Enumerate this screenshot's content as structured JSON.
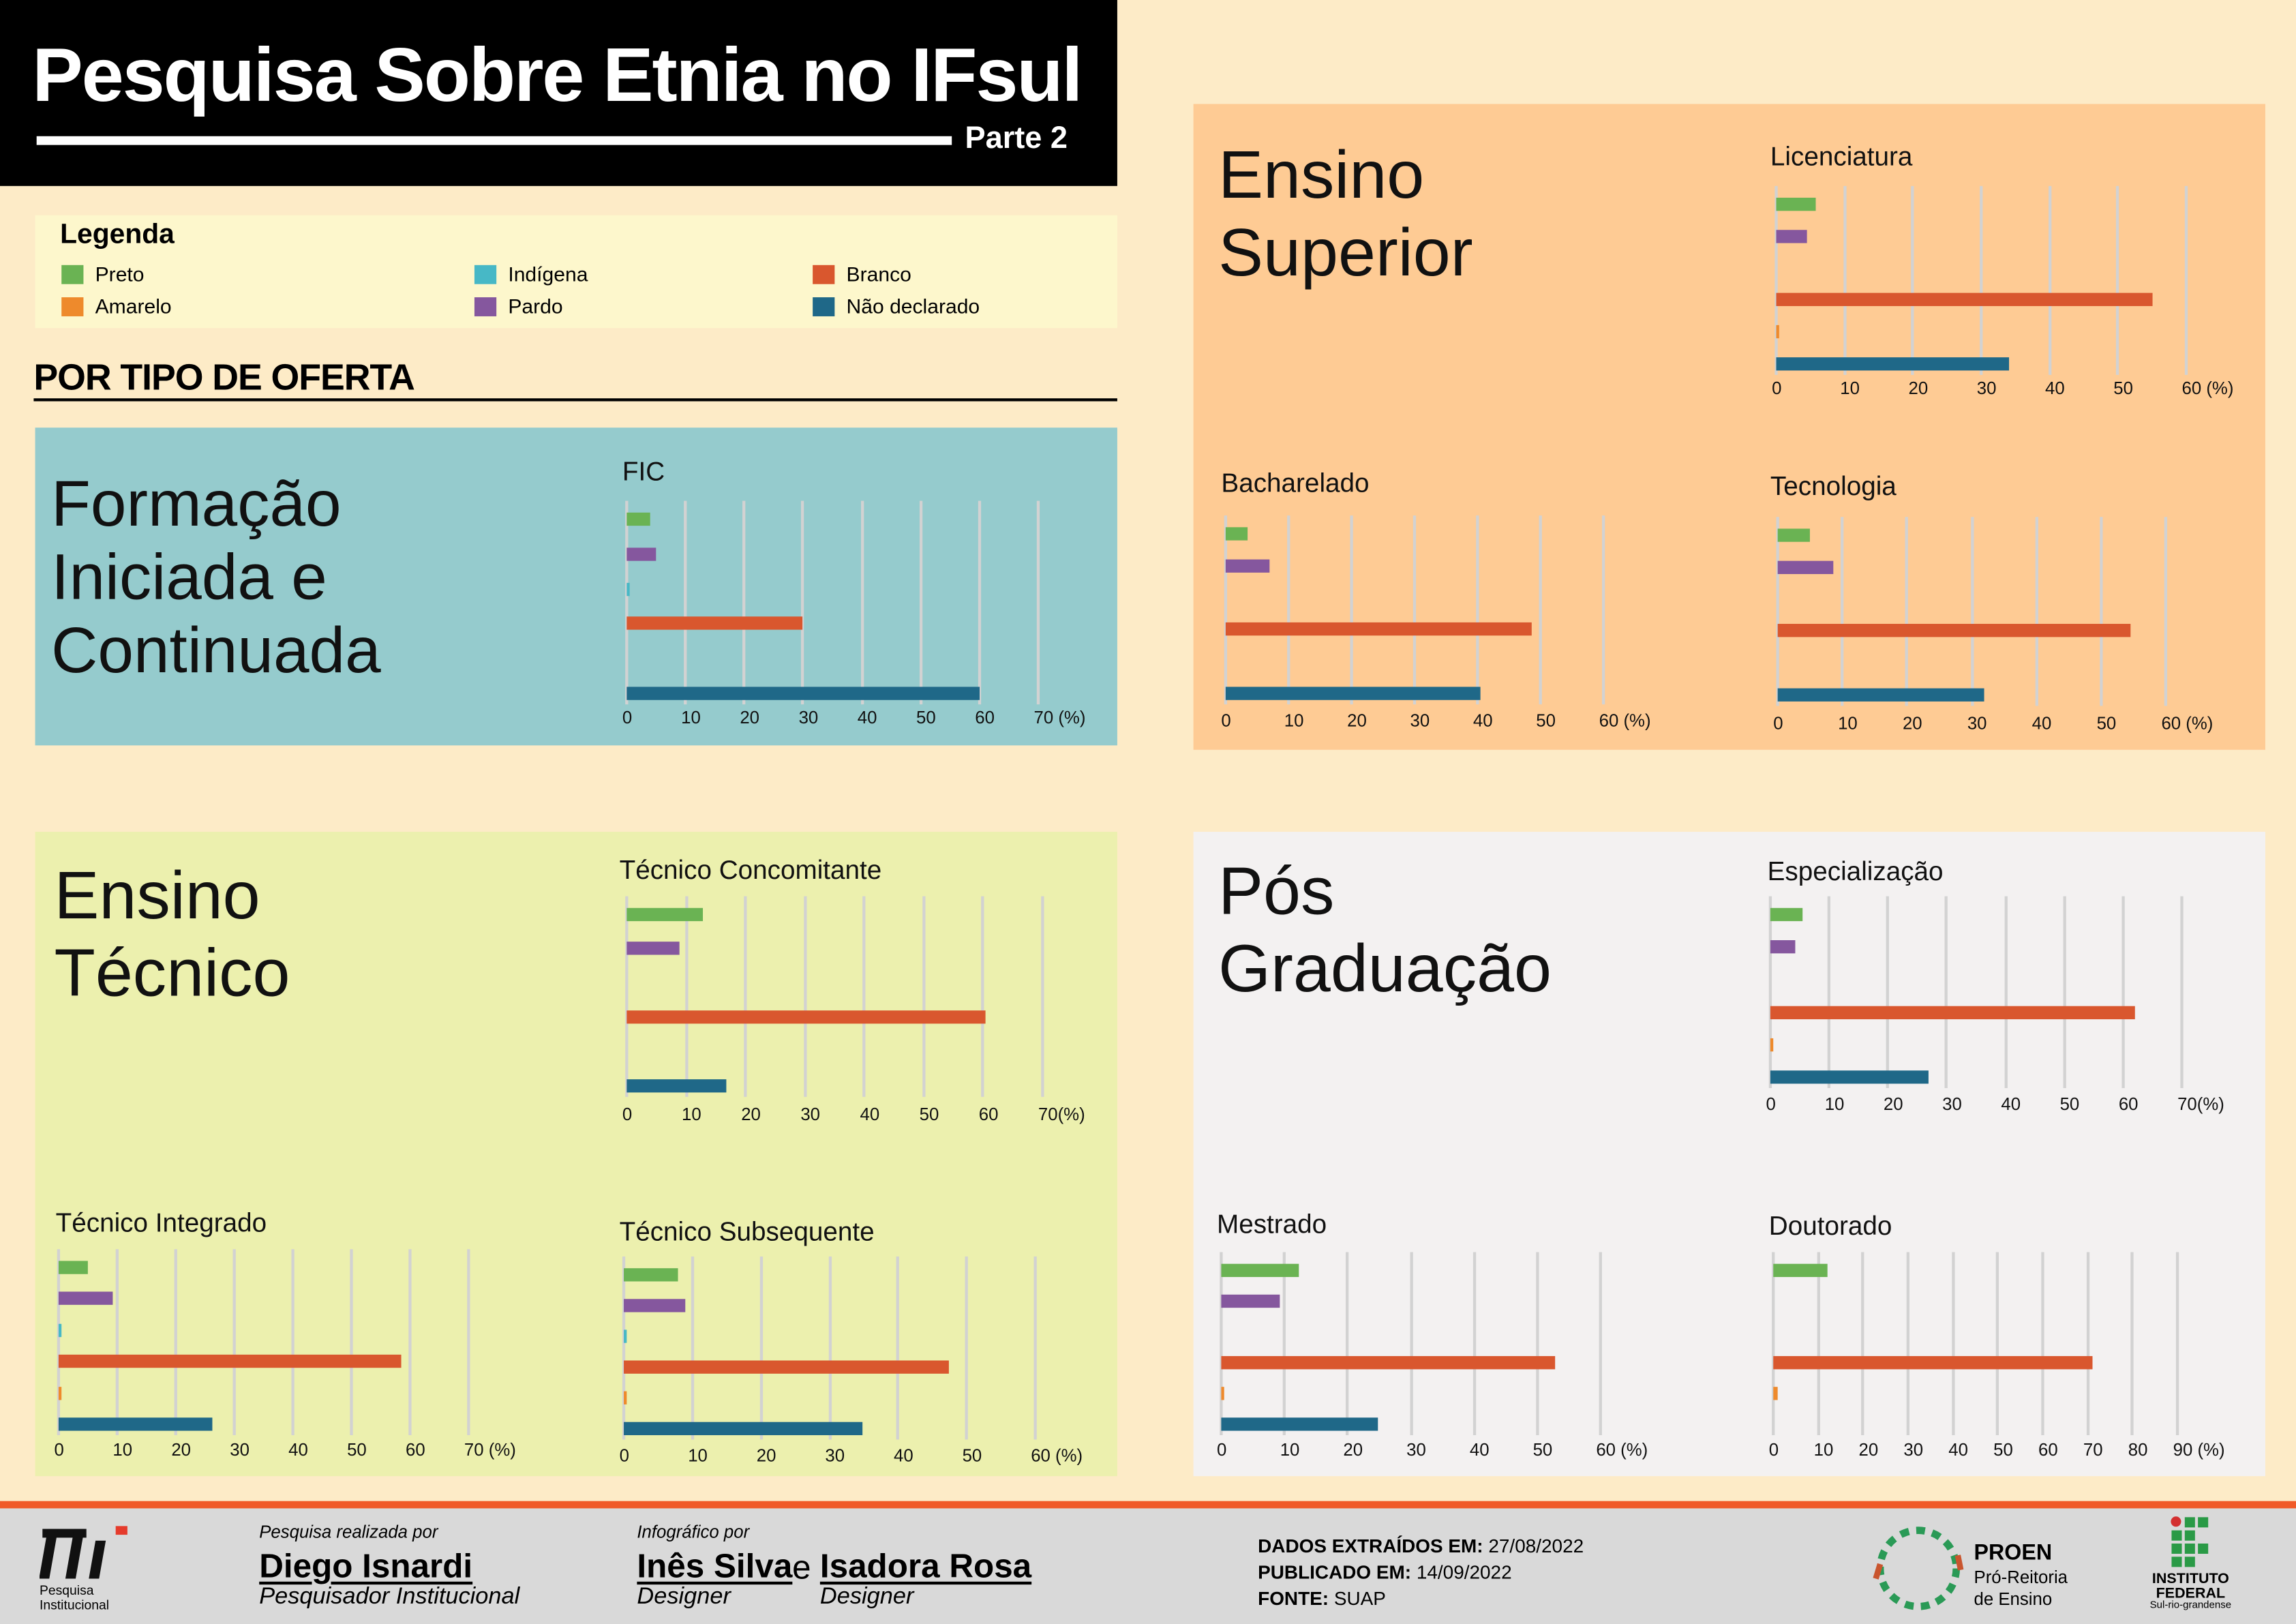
{
  "header": {
    "title": "Pesquisa Sobre Etnia no IFsul",
    "part": "Parte 2"
  },
  "legend": {
    "title": "Legenda",
    "items": [
      {
        "label": "Preto",
        "color": "#6ab353"
      },
      {
        "label": "Amarelo",
        "color": "#ee8a2c"
      },
      {
        "label": "Indígena",
        "color": "#47b8c6"
      },
      {
        "label": "Pardo",
        "color": "#85579e"
      },
      {
        "label": "Branco",
        "color": "#d9572e"
      },
      {
        "label": "Não declarado",
        "color": "#1f6888"
      }
    ]
  },
  "section_title": "POR TIPO DE OFERTA",
  "panels": {
    "fic": "Formação\nIniciada e\nContinuada",
    "superior": "Ensino\nSuperior",
    "tecnico": "Ensino\nTécnico",
    "pos": "Pós\nGraduação"
  },
  "series_colors": {
    "Preto": "#6ab353",
    "Pardo": "#85579e",
    "Indígena": "#47b8c6",
    "Branco": "#d9572e",
    "Amarelo": "#ee8a2c",
    "Não declarado": "#1f6888"
  },
  "chart_data": [
    {
      "type": "bar",
      "orientation": "horizontal",
      "title": "FIC",
      "categories": [
        "Preto",
        "Pardo",
        "Indígena",
        "Branco",
        "Amarelo",
        "Não declarado"
      ],
      "values": [
        4,
        5,
        0.3,
        30,
        0,
        60
      ],
      "xlim": [
        0,
        70
      ],
      "tick_labels": [
        "0",
        "10",
        "20",
        "30",
        "40",
        "50",
        "60",
        "70 (%)"
      ],
      "grid": true
    },
    {
      "type": "bar",
      "orientation": "horizontal",
      "title": "Licenciatura",
      "categories": [
        "Preto",
        "Pardo",
        "Indígena",
        "Branco",
        "Amarelo",
        "Não declarado"
      ],
      "values": [
        5.8,
        4.6,
        0,
        55,
        0.3,
        34
      ],
      "xlim": [
        0,
        60
      ],
      "tick_labels": [
        "0",
        "10",
        "20",
        "30",
        "40",
        "50",
        "60 (%)"
      ],
      "grid": true
    },
    {
      "type": "bar",
      "orientation": "horizontal",
      "title": "Bacharelado",
      "categories": [
        "Preto",
        "Pardo",
        "Indígena",
        "Branco",
        "Amarelo",
        "Não declarado"
      ],
      "values": [
        3.5,
        7,
        0,
        48.5,
        0,
        40.5
      ],
      "xlim": [
        0,
        60
      ],
      "tick_labels": [
        "0",
        "10",
        "20",
        "30",
        "40",
        "50",
        "60 (%)"
      ],
      "grid": true
    },
    {
      "type": "bar",
      "orientation": "horizontal",
      "title": "Tecnologia",
      "categories": [
        "Preto",
        "Pardo",
        "Indígena",
        "Branco",
        "Amarelo",
        "Não declarado"
      ],
      "values": [
        5,
        8.5,
        0,
        54.5,
        0,
        32
      ],
      "xlim": [
        0,
        60
      ],
      "tick_labels": [
        "0",
        "10",
        "20",
        "30",
        "40",
        "50",
        "60 (%)"
      ],
      "grid": true
    },
    {
      "type": "bar",
      "orientation": "horizontal",
      "title": "Técnico Concomitante",
      "categories": [
        "Preto",
        "Pardo",
        "Indígena",
        "Branco",
        "Amarelo",
        "Não declarado"
      ],
      "values": [
        12.7,
        8.8,
        0,
        60.5,
        0,
        16.7
      ],
      "xlim": [
        0,
        70
      ],
      "tick_labels": [
        "0",
        "10",
        "20",
        "30",
        "40",
        "50",
        "60",
        "70(%)"
      ],
      "grid": true
    },
    {
      "type": "bar",
      "orientation": "horizontal",
      "title": "Técnico Integrado",
      "categories": [
        "Preto",
        "Pardo",
        "Indígena",
        "Branco",
        "Amarelo",
        "Não declarado"
      ],
      "values": [
        5,
        9.3,
        0.1,
        58.5,
        0.2,
        26.3
      ],
      "xlim": [
        0,
        70
      ],
      "tick_labels": [
        "0",
        "10",
        "20",
        "30",
        "40",
        "50",
        "60",
        "70 (%)"
      ],
      "grid": true
    },
    {
      "type": "bar",
      "orientation": "horizontal",
      "title": "Técnico Subsequente",
      "categories": [
        "Preto",
        "Pardo",
        "Indígena",
        "Branco",
        "Amarelo",
        "Não declarado"
      ],
      "values": [
        8,
        9,
        0.1,
        47.5,
        0.1,
        34.8
      ],
      "xlim": [
        0,
        60
      ],
      "tick_labels": [
        "0",
        "10",
        "20",
        "30",
        "40",
        "50",
        "60 (%)"
      ],
      "grid": true
    },
    {
      "type": "bar",
      "orientation": "horizontal",
      "title": "Especialização",
      "categories": [
        "Preto",
        "Pardo",
        "Indígena",
        "Branco",
        "Amarelo",
        "Não declarado"
      ],
      "values": [
        5.5,
        4.2,
        0,
        62,
        0.3,
        27
      ],
      "xlim": [
        0,
        70
      ],
      "tick_labels": [
        "0",
        "10",
        "20",
        "30",
        "40",
        "50",
        "60",
        "70(%)"
      ],
      "grid": true
    },
    {
      "type": "bar",
      "orientation": "horizontal",
      "title": "Mestrado",
      "categories": [
        "Preto",
        "Pardo",
        "Indígena",
        "Branco",
        "Amarelo",
        "Não declarado"
      ],
      "values": [
        12.3,
        9.3,
        0,
        52.8,
        0.3,
        24.8
      ],
      "xlim": [
        0,
        60
      ],
      "tick_labels": [
        "0",
        "10",
        "20",
        "30",
        "40",
        "50",
        "60 (%)"
      ],
      "grid": true
    },
    {
      "type": "bar",
      "orientation": "horizontal",
      "title": "Doutorado",
      "categories": [
        "Preto",
        "Pardo",
        "Indígena",
        "Branco",
        "Amarelo",
        "Não declarado"
      ],
      "values": [
        12,
        0,
        0,
        71,
        1,
        0
      ],
      "xlim": [
        0,
        90
      ],
      "tick_labels": [
        "0",
        "10",
        "20",
        "30",
        "40",
        "50",
        "60",
        "70",
        "80",
        "90 (%)"
      ],
      "grid": true
    }
  ],
  "footer": {
    "logo_label": "Pesquisa\nInstitucional",
    "research_by": "Pesquisa realizada por",
    "researcher": "Diego Isnardi",
    "researcher_role": "Pesquisador Institucional",
    "infographic_by": "Infográfico por",
    "designer1": "Inês Silva",
    "and": "e",
    "designer2": "Isadora Rosa",
    "designer1_role": "Designer",
    "designer2_role": "Designer",
    "extracted_label": "DADOS EXTRAÍDOS EM:",
    "extracted_date": "27/08/2022",
    "published_label": "PUBLICADO EM:",
    "published_date": "14/09/2022",
    "source_label": "FONTE:",
    "source": "SUAP",
    "proen": "PROEN",
    "proen_sub1": "Pró-Reitoria",
    "proen_sub2": "de Ensino",
    "if_name1": "INSTITUTO",
    "if_name2": "FEDERAL",
    "if_sub": "Sul-rio-grandense"
  }
}
